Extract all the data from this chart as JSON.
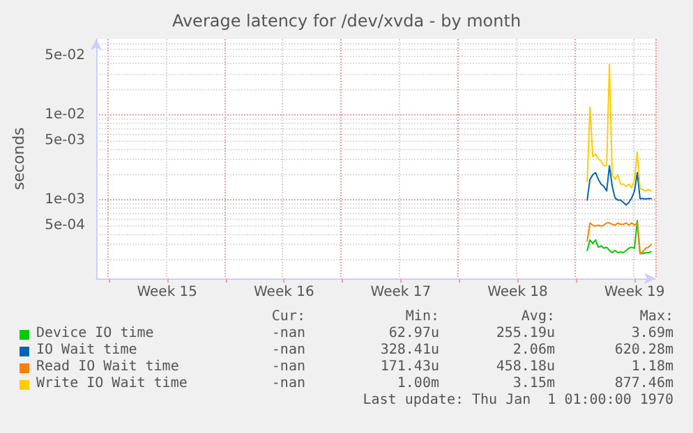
{
  "chart_data": {
    "type": "line",
    "title": "Average latency for /dev/xvda - by month",
    "ylabel": "seconds",
    "log": "y",
    "grid": true,
    "legend": "bottom",
    "marker": "none",
    "line_style": "solid",
    "categories": [
      null,
      null,
      null,
      null,
      null,
      null,
      null,
      null,
      null,
      null,
      null,
      null,
      null,
      null,
      null,
      null,
      null,
      null,
      null,
      null,
      null,
      null,
      null,
      null,
      null,
      "Week 15",
      null,
      null,
      null,
      null,
      null,
      null,
      null,
      null,
      null,
      null,
      null,
      null,
      null,
      null,
      null,
      null,
      null,
      null,
      null,
      null,
      null,
      null,
      null,
      null,
      null,
      null,
      null,
      null,
      null,
      null,
      null,
      null,
      null,
      null,
      null,
      null,
      null,
      null,
      null,
      null,
      null,
      "Week 16",
      null,
      null,
      null,
      null,
      null,
      null,
      null,
      null,
      null,
      null,
      null,
      null,
      null,
      null,
      null,
      null,
      null,
      null,
      null,
      null,
      null,
      null,
      null,
      null,
      null,
      null,
      null,
      null,
      null,
      null,
      null,
      null,
      null,
      null,
      null,
      null,
      null,
      null,
      null,
      null,
      null,
      "Week 17",
      null,
      null,
      null,
      null,
      null,
      null,
      null,
      null,
      null,
      null,
      null,
      null,
      null,
      null,
      null,
      null,
      null,
      null,
      null,
      null,
      null,
      null,
      null,
      null,
      null,
      null,
      null,
      null,
      null,
      null,
      null,
      null,
      null,
      null,
      null,
      null,
      null,
      null,
      null,
      null,
      null,
      "Week 18",
      null,
      null,
      null,
      null,
      null,
      null,
      null,
      null,
      null,
      null,
      null,
      null,
      null,
      null,
      null,
      null,
      null,
      null,
      null,
      null,
      null,
      null,
      null,
      null,
      null,
      null,
      null,
      null,
      null,
      null,
      null,
      null,
      null,
      null,
      null,
      null,
      null,
      null,
      null,
      null,
      null,
      "Week 19",
      null,
      null,
      null,
      null,
      null,
      null,
      null
    ],
    "ylim": [
      0.00012,
      0.078
    ],
    "yticks": [
      {
        "value": 0.0005,
        "label": "5e-04"
      },
      {
        "value": 0.001,
        "label": "1e-03"
      },
      {
        "value": 0.005,
        "label": "5e-03"
      },
      {
        "value": 0.01,
        "label": "1e-02"
      },
      {
        "value": 0.05,
        "label": "5e-02"
      }
    ],
    "series": [
      {
        "name": "Device IO time",
        "color": "#00cc00",
        "values": [
          null,
          null,
          null,
          null,
          null,
          null,
          null,
          null,
          null,
          null,
          null,
          null,
          null,
          null,
          null,
          null,
          null,
          null,
          null,
          null,
          null,
          null,
          null,
          null,
          null,
          null,
          null,
          null,
          null,
          null,
          null,
          null,
          null,
          null,
          null,
          null,
          null,
          null,
          null,
          null,
          null,
          null,
          null,
          null,
          null,
          null,
          null,
          null,
          null,
          null,
          null,
          null,
          null,
          null,
          null,
          null,
          null,
          null,
          null,
          null,
          null,
          null,
          null,
          null,
          null,
          null,
          null,
          null,
          null,
          null,
          null,
          null,
          null,
          null,
          null,
          null,
          null,
          null,
          null,
          null,
          null,
          null,
          null,
          null,
          null,
          null,
          null,
          null,
          null,
          null,
          null,
          null,
          null,
          null,
          null,
          null,
          null,
          null,
          null,
          null,
          null,
          null,
          null,
          null,
          null,
          null,
          null,
          null,
          null,
          null,
          null,
          null,
          null,
          null,
          null,
          null,
          null,
          null,
          null,
          null,
          null,
          null,
          null,
          null,
          null,
          null,
          null,
          null,
          null,
          null,
          null,
          null,
          null,
          null,
          null,
          null,
          null,
          null,
          null,
          null,
          null,
          null,
          null,
          null,
          null,
          null,
          null,
          null,
          null,
          null,
          null,
          null,
          null,
          null,
          null,
          null,
          null,
          null,
          null,
          null,
          null,
          null,
          null,
          null,
          null,
          null,
          null,
          null,
          null,
          null,
          null,
          null,
          null,
          null,
          null,
          null,
          0.000256,
          0.00034,
          0.000308,
          0.00034,
          0.000279,
          0.00029,
          0.000272,
          0.000279,
          0.000256,
          0.000241,
          0.000256,
          0.000241,
          0.000247,
          0.000241,
          0.000256,
          0.000272,
          0.000279,
          0.000272,
          0.000573,
          0.000235,
          0.000235,
          0.000241,
          0.000241,
          0.000247,
          null
        ]
      },
      {
        "name": "IO Wait time",
        "color": "#0066b3",
        "values": [
          null,
          null,
          null,
          null,
          null,
          null,
          null,
          null,
          null,
          null,
          null,
          null,
          null,
          null,
          null,
          null,
          null,
          null,
          null,
          null,
          null,
          null,
          null,
          null,
          null,
          null,
          null,
          null,
          null,
          null,
          null,
          null,
          null,
          null,
          null,
          null,
          null,
          null,
          null,
          null,
          null,
          null,
          null,
          null,
          null,
          null,
          null,
          null,
          null,
          null,
          null,
          null,
          null,
          null,
          null,
          null,
          null,
          null,
          null,
          null,
          null,
          null,
          null,
          null,
          null,
          null,
          null,
          null,
          null,
          null,
          null,
          null,
          null,
          null,
          null,
          null,
          null,
          null,
          null,
          null,
          null,
          null,
          null,
          null,
          null,
          null,
          null,
          null,
          null,
          null,
          null,
          null,
          null,
          null,
          null,
          null,
          null,
          null,
          null,
          null,
          null,
          null,
          null,
          null,
          null,
          null,
          null,
          null,
          null,
          null,
          null,
          null,
          null,
          null,
          null,
          null,
          null,
          null,
          null,
          null,
          null,
          null,
          null,
          null,
          null,
          null,
          null,
          null,
          null,
          null,
          null,
          null,
          null,
          null,
          null,
          null,
          null,
          null,
          null,
          null,
          null,
          null,
          null,
          null,
          null,
          null,
          null,
          null,
          null,
          null,
          null,
          null,
          null,
          null,
          null,
          null,
          null,
          null,
          null,
          null,
          null,
          null,
          null,
          null,
          null,
          null,
          null,
          null,
          null,
          null,
          null,
          null,
          null,
          null,
          null,
          null,
          0.001,
          0.00175,
          0.00198,
          0.0021,
          0.00175,
          0.00154,
          0.00145,
          0.00128,
          0.00253,
          0.00145,
          0.00106,
          0.001,
          0.001,
          0.00094,
          0.00088,
          0.00094,
          0.00106,
          0.00128,
          0.0021,
          0.00104,
          0.00104,
          0.00103,
          0.00104,
          0.00104,
          null
        ]
      },
      {
        "name": "Read IO Wait time",
        "color": "#ff8000",
        "values": [
          null,
          null,
          null,
          null,
          null,
          null,
          null,
          null,
          null,
          null,
          null,
          null,
          null,
          null,
          null,
          null,
          null,
          null,
          null,
          null,
          null,
          null,
          null,
          null,
          null,
          null,
          null,
          null,
          null,
          null,
          null,
          null,
          null,
          null,
          null,
          null,
          null,
          null,
          null,
          null,
          null,
          null,
          null,
          null,
          null,
          null,
          null,
          null,
          null,
          null,
          null,
          null,
          null,
          null,
          null,
          null,
          null,
          null,
          null,
          null,
          null,
          null,
          null,
          null,
          null,
          null,
          null,
          null,
          null,
          null,
          null,
          null,
          null,
          null,
          null,
          null,
          null,
          null,
          null,
          null,
          null,
          null,
          null,
          null,
          null,
          null,
          null,
          null,
          null,
          null,
          null,
          null,
          null,
          null,
          null,
          null,
          null,
          null,
          null,
          null,
          null,
          null,
          null,
          null,
          null,
          null,
          null,
          null,
          null,
          null,
          null,
          null,
          null,
          null,
          null,
          null,
          null,
          null,
          null,
          null,
          null,
          null,
          null,
          null,
          null,
          null,
          null,
          null,
          null,
          null,
          null,
          null,
          null,
          null,
          null,
          null,
          null,
          null,
          null,
          null,
          null,
          null,
          null,
          null,
          null,
          null,
          null,
          null,
          null,
          null,
          null,
          null,
          null,
          null,
          null,
          null,
          null,
          null,
          null,
          null,
          null,
          null,
          null,
          null,
          null,
          null,
          null,
          null,
          null,
          null,
          null,
          null,
          null,
          null,
          null,
          null,
          0.000328,
          0.000538,
          0.000506,
          0.000494,
          0.000506,
          0.000494,
          0.000506,
          0.000538,
          0.000538,
          0.000519,
          0.000506,
          0.000538,
          0.000519,
          0.000519,
          0.000538,
          0.000506,
          0.000538,
          0.000506,
          0.000538,
          0.000235,
          0.000247,
          0.000272,
          0.000279,
          0.000301,
          null
        ]
      },
      {
        "name": "Write IO Wait time",
        "color": "#ffcc00",
        "values": [
          null,
          null,
          null,
          null,
          null,
          null,
          null,
          null,
          null,
          null,
          null,
          null,
          null,
          null,
          null,
          null,
          null,
          null,
          null,
          null,
          null,
          null,
          null,
          null,
          null,
          null,
          null,
          null,
          null,
          null,
          null,
          null,
          null,
          null,
          null,
          null,
          null,
          null,
          null,
          null,
          null,
          null,
          null,
          null,
          null,
          null,
          null,
          null,
          null,
          null,
          null,
          null,
          null,
          null,
          null,
          null,
          null,
          null,
          null,
          null,
          null,
          null,
          null,
          null,
          null,
          null,
          null,
          null,
          null,
          null,
          null,
          null,
          null,
          null,
          null,
          null,
          null,
          null,
          null,
          null,
          null,
          null,
          null,
          null,
          null,
          null,
          null,
          null,
          null,
          null,
          null,
          null,
          null,
          null,
          null,
          null,
          null,
          null,
          null,
          null,
          null,
          null,
          null,
          null,
          null,
          null,
          null,
          null,
          null,
          null,
          null,
          null,
          null,
          null,
          null,
          null,
          null,
          null,
          null,
          null,
          null,
          null,
          null,
          null,
          null,
          null,
          null,
          null,
          null,
          null,
          null,
          null,
          null,
          null,
          null,
          null,
          null,
          null,
          null,
          null,
          null,
          null,
          null,
          null,
          null,
          null,
          null,
          null,
          null,
          null,
          null,
          null,
          null,
          null,
          null,
          null,
          null,
          null,
          null,
          null,
          null,
          null,
          null,
          null,
          null,
          null,
          null,
          null,
          null,
          null,
          null,
          null,
          null,
          null,
          null,
          null,
          0.00164,
          0.0124,
          0.00324,
          0.00345,
          0.00305,
          0.00286,
          0.00253,
          0.00253,
          0.0395,
          0.00198,
          0.00175,
          0.00198,
          0.00154,
          0.00154,
          0.00145,
          0.00154,
          0.0014,
          0.00175,
          0.00367,
          0.00136,
          0.00133,
          0.00128,
          0.00133,
          0.00128,
          null
        ]
      }
    ],
    "annotations": [
      "Cur:",
      "Min:",
      "Avg:",
      "Max:",
      "-nan",
      "62.97u",
      "255.19u",
      "3.69m",
      "-nan",
      "328.41u",
      "2.06m",
      "620.28m",
      "-nan",
      "171.43u",
      "458.18u",
      "1.18m",
      "-nan",
      "1.00m",
      "3.15m",
      "877.46m",
      "Last update: Thu Jan  1 01:00:00 1970"
    ]
  }
}
